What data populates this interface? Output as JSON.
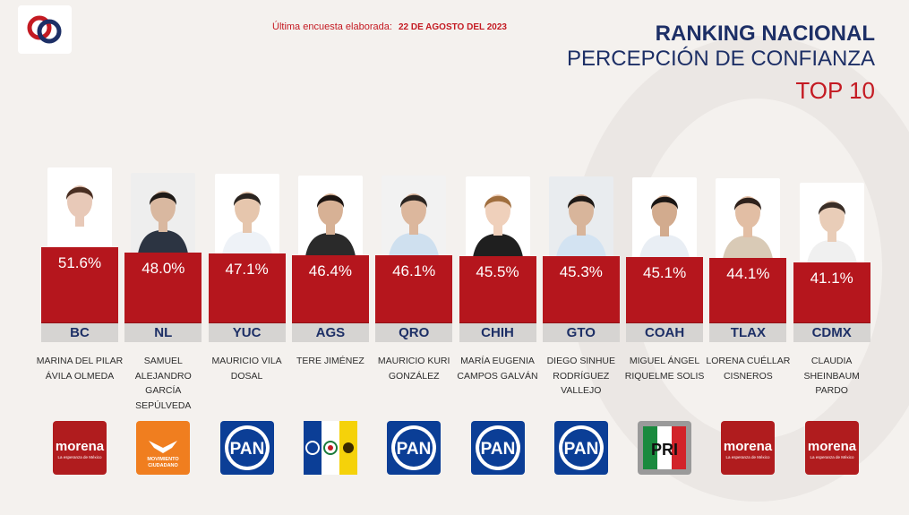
{
  "header": {
    "survey_label": "Última encuesta elaborada:",
    "survey_date": "22 DE AGOSTO DEL 2023",
    "title_line1": "RANKING NACIONAL",
    "title_line2": "PERCEPCIÓN DE CONFIANZA",
    "title_line3": "TOP 10"
  },
  "colors": {
    "bar": "#b5161d",
    "navy": "#1d2f66",
    "accent_red": "#c41a22",
    "state_strip": "#d6d4d2"
  },
  "chart_data": {
    "type": "bar",
    "title": "RANKING NACIONAL PERCEPCIÓN DE CONFIANZA TOP 10",
    "categories": [
      "BC",
      "NL",
      "YUC",
      "AGS",
      "QRO",
      "CHIH",
      "GTO",
      "COAH",
      "TLAX",
      "CDMX"
    ],
    "values": [
      51.6,
      48.0,
      47.1,
      46.4,
      46.1,
      45.5,
      45.3,
      45.1,
      44.1,
      41.1
    ],
    "value_labels": [
      "51.6%",
      "48.0%",
      "47.1%",
      "46.4%",
      "46.1%",
      "45.5%",
      "45.3%",
      "45.1%",
      "44.1%",
      "41.1%"
    ],
    "names": [
      "MARINA DEL PILAR ÁVILA OLMEDA",
      "SAMUEL ALEJANDRO GARCÍA SEPÚLVEDA",
      "MAURICIO VILA DOSAL",
      "TERE JIMÉNEZ",
      "MAURICIO KURI GONZÁLEZ",
      "MARÍA EUGENIA CAMPOS GALVÁN",
      "DIEGO SINHUE RODRÍGUEZ VALLEJO",
      "MIGUEL ÁNGEL RIQUELME SOLIS",
      "LORENA CUÉLLAR CISNEROS",
      "CLAUDIA SHEINBAUM PARDO"
    ],
    "parties": [
      "morena",
      "movimiento-ciudadano",
      "pan",
      "pan-pri-prd",
      "pan",
      "pan",
      "pan",
      "pri",
      "morena",
      "morena"
    ],
    "xlabel": "",
    "ylabel": ""
  },
  "party_text": {
    "morena": "morena",
    "morena_sub": "La esperanza de México",
    "mc_line1": "MOVIMIENTO",
    "mc_line2": "CIUDADANO",
    "pan": "PAN",
    "pri": "PRI"
  }
}
